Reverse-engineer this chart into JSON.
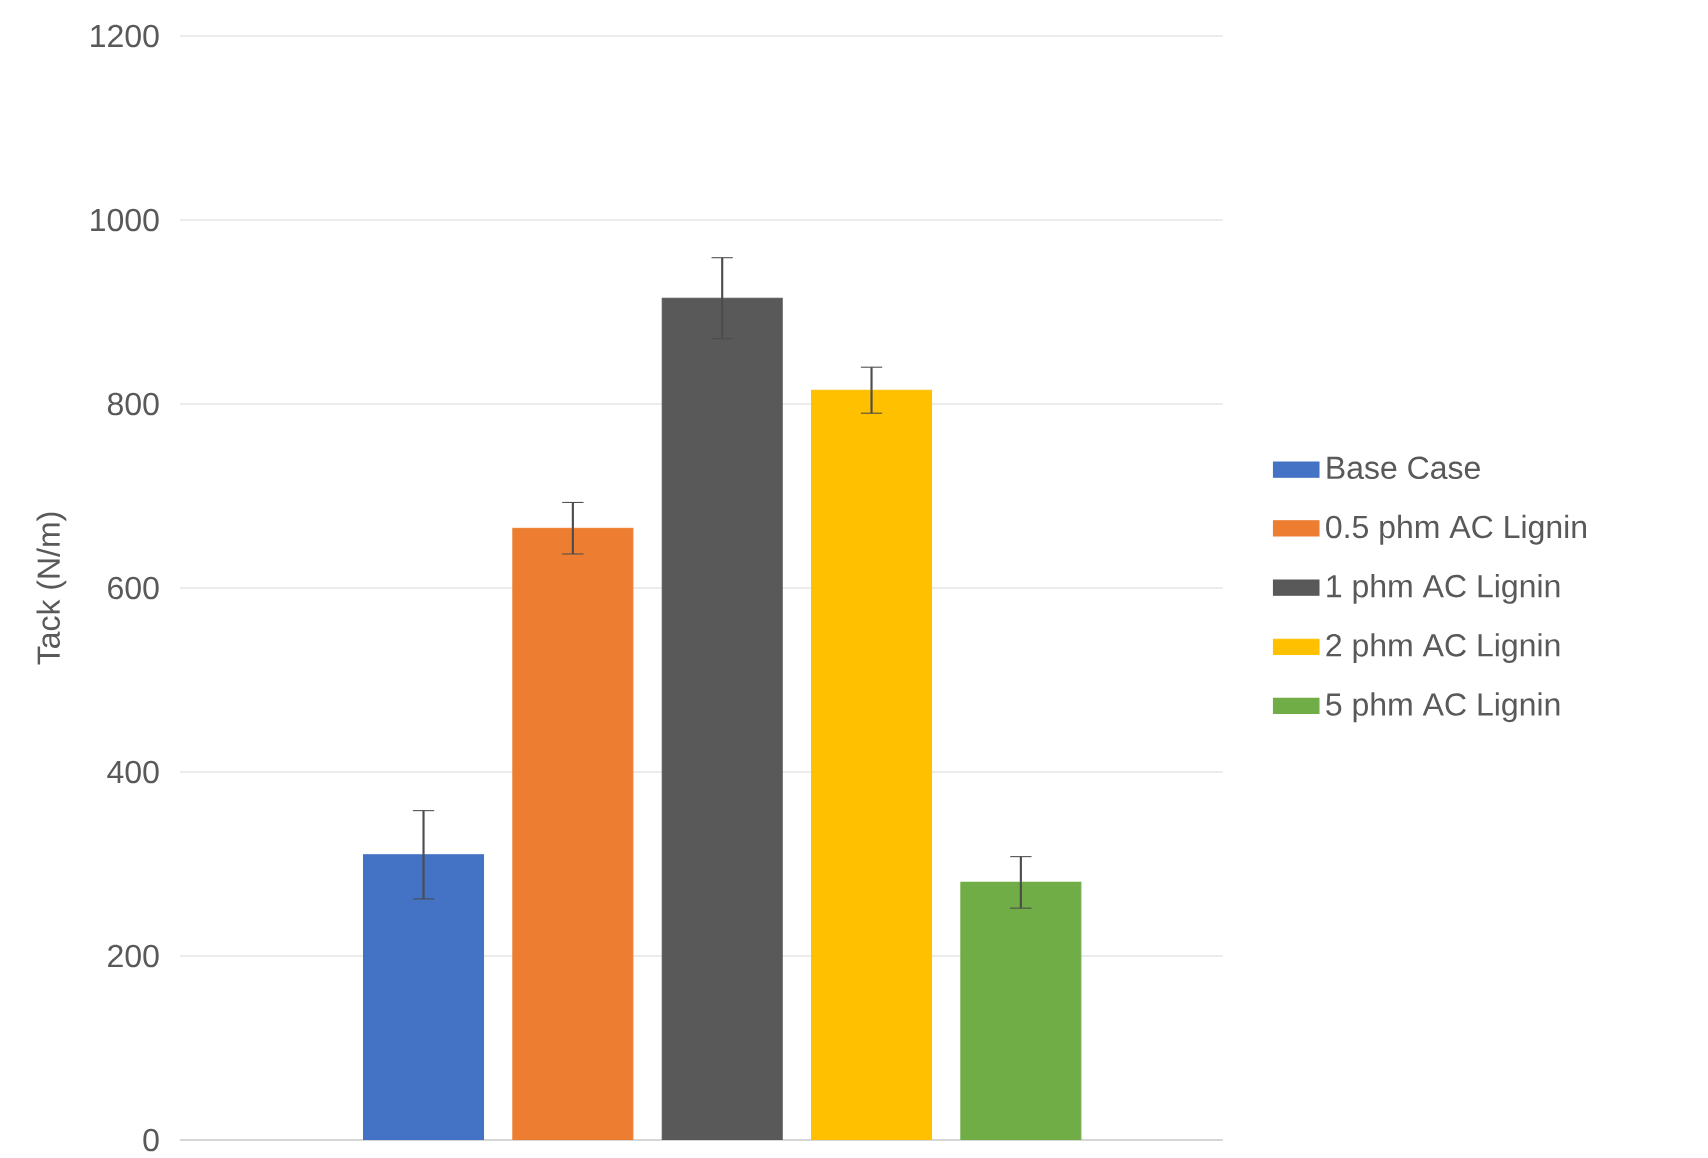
{
  "chart_data": {
    "type": "bar",
    "ylabel": "Tack (N/m)",
    "categories": [
      null
    ],
    "series": [
      {
        "name": "Base Case",
        "color": "#4472c4",
        "values": [
          310
        ],
        "errors": [
          48
        ]
      },
      {
        "name": "0.5 phm AC Lignin",
        "color": "#ed7d31",
        "values": [
          665
        ],
        "errors": [
          28
        ]
      },
      {
        "name": "1 phm AC Lignin",
        "color": "#595959",
        "values": [
          915
        ],
        "errors": [
          44
        ]
      },
      {
        "name": "2 phm AC Lignin",
        "color": "#ffc000",
        "values": [
          815
        ],
        "errors": [
          25
        ]
      },
      {
        "name": "5 phm AC Lignin",
        "color": "#70ad47",
        "values": [
          280
        ],
        "errors": [
          28
        ]
      }
    ],
    "ylim": [
      0,
      1200
    ],
    "yticks": [
      0,
      200,
      400,
      600,
      800,
      1000,
      1200
    ],
    "grid": "y",
    "legend": "right"
  }
}
